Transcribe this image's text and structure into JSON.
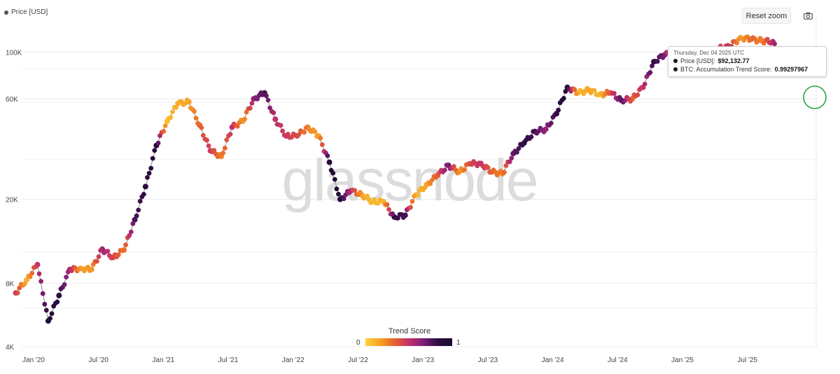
{
  "legend": {
    "label": "Price [USD]"
  },
  "toolbar": {
    "reset_zoom_label": "Reset zoom",
    "camera_icon": "camera-icon"
  },
  "tooltip": {
    "date": "Thursday, Dec 04 2025 UTC",
    "price_label": "Price [USD]: ",
    "price_value": "$92,132.77",
    "score_label": "BTC: Accumulation Trend Score: ",
    "score_value": "0.99297967"
  },
  "watermark": "glassnode",
  "colorbar": {
    "title": "Trend Score",
    "min_label": "0",
    "max_label": "1",
    "colors": [
      "#fcd33a",
      "#f6a328",
      "#e8622c",
      "#c2306a",
      "#7e1e78",
      "#2d0c42",
      "#1a0a2e"
    ]
  },
  "chart_data": {
    "type": "scatter",
    "scale": "log",
    "ylim": [
      4000,
      130000
    ],
    "y_ticks": [
      {
        "value": 4000,
        "label": "4K"
      },
      {
        "value": 8000,
        "label": "8K"
      },
      {
        "value": 20000,
        "label": "20K"
      },
      {
        "value": 60000,
        "label": "60K"
      },
      {
        "value": 100000,
        "label": "100K"
      }
    ],
    "x_ticks": [
      "Jan '20",
      "Jul '20",
      "Jan '21",
      "Jul '21",
      "Jan '22",
      "Jul '22",
      "Jan '23",
      "Jul '23",
      "Jan '24",
      "Jul '24",
      "Jan '25",
      "Jul '25"
    ],
    "x_start": "2020-01",
    "highlight": {
      "date": "2025-12",
      "price": 92132.77,
      "score": 0.99297967
    },
    "series": [
      {
        "values": [
          {
            "x": "2019-12",
            "y": 7200,
            "s": 0.55
          },
          {
            "x": "2020-01",
            "y": 8300,
            "s": 0.15
          },
          {
            "x": "2020-02",
            "y": 9800,
            "s": 0.6
          },
          {
            "x": "2020-03",
            "y": 5300,
            "s": 0.95
          },
          {
            "x": "2020-04",
            "y": 7000,
            "s": 0.9
          },
          {
            "x": "2020-05",
            "y": 9300,
            "s": 0.65
          },
          {
            "x": "2020-06",
            "y": 9400,
            "s": 0.2
          },
          {
            "x": "2020-07",
            "y": 9300,
            "s": 0.25
          },
          {
            "x": "2020-08",
            "y": 11600,
            "s": 0.7
          },
          {
            "x": "2020-09",
            "y": 10600,
            "s": 0.5
          },
          {
            "x": "2020-10",
            "y": 11500,
            "s": 0.35
          },
          {
            "x": "2020-11",
            "y": 16000,
            "s": 0.85
          },
          {
            "x": "2020-12",
            "y": 23000,
            "s": 0.9
          },
          {
            "x": "2021-01",
            "y": 36000,
            "s": 0.95
          },
          {
            "x": "2021-02",
            "y": 47000,
            "s": 0.1
          },
          {
            "x": "2021-03",
            "y": 57000,
            "s": 0.15
          },
          {
            "x": "2021-04",
            "y": 58000,
            "s": 0.2
          },
          {
            "x": "2021-05",
            "y": 45000,
            "s": 0.4
          },
          {
            "x": "2021-06",
            "y": 34000,
            "s": 0.55
          },
          {
            "x": "2021-07",
            "y": 32000,
            "s": 0.3
          },
          {
            "x": "2021-08",
            "y": 44000,
            "s": 0.6
          },
          {
            "x": "2021-09",
            "y": 47000,
            "s": 0.2
          },
          {
            "x": "2021-10",
            "y": 60000,
            "s": 0.7
          },
          {
            "x": "2021-11",
            "y": 64000,
            "s": 0.85
          },
          {
            "x": "2021-12",
            "y": 48000,
            "s": 0.6
          },
          {
            "x": "2022-01",
            "y": 40000,
            "s": 0.55
          },
          {
            "x": "2022-02",
            "y": 40000,
            "s": 0.5
          },
          {
            "x": "2022-03",
            "y": 44000,
            "s": 0.3
          },
          {
            "x": "2022-04",
            "y": 40000,
            "s": 0.2
          },
          {
            "x": "2022-05",
            "y": 30000,
            "s": 0.95
          },
          {
            "x": "2022-06",
            "y": 20000,
            "s": 0.95
          },
          {
            "x": "2022-07",
            "y": 22000,
            "s": 0.6
          },
          {
            "x": "2022-08",
            "y": 21000,
            "s": 0.2
          },
          {
            "x": "2022-09",
            "y": 19500,
            "s": 0.1
          },
          {
            "x": "2022-10",
            "y": 19500,
            "s": 0.15
          },
          {
            "x": "2022-11",
            "y": 16500,
            "s": 0.9
          },
          {
            "x": "2022-12",
            "y": 16800,
            "s": 0.85
          },
          {
            "x": "2023-01",
            "y": 21000,
            "s": 0.1
          },
          {
            "x": "2023-02",
            "y": 23500,
            "s": 0.2
          },
          {
            "x": "2023-03",
            "y": 26000,
            "s": 0.45
          },
          {
            "x": "2023-04",
            "y": 29000,
            "s": 0.8
          },
          {
            "x": "2023-05",
            "y": 27000,
            "s": 0.2
          },
          {
            "x": "2023-06",
            "y": 29500,
            "s": 0.5
          },
          {
            "x": "2023-07",
            "y": 29600,
            "s": 0.6
          },
          {
            "x": "2023-08",
            "y": 27000,
            "s": 0.4
          },
          {
            "x": "2023-09",
            "y": 26500,
            "s": 0.3
          },
          {
            "x": "2023-10",
            "y": 33000,
            "s": 0.8
          },
          {
            "x": "2023-11",
            "y": 37000,
            "s": 0.9
          },
          {
            "x": "2023-12",
            "y": 42000,
            "s": 0.85
          },
          {
            "x": "2024-01",
            "y": 43000,
            "s": 0.7
          },
          {
            "x": "2024-02",
            "y": 51000,
            "s": 0.9
          },
          {
            "x": "2024-03",
            "y": 68000,
            "s": 0.95
          },
          {
            "x": "2024-04",
            "y": 64000,
            "s": 0.1
          },
          {
            "x": "2024-05",
            "y": 66000,
            "s": 0.2
          },
          {
            "x": "2024-06",
            "y": 63000,
            "s": 0.1
          },
          {
            "x": "2024-07",
            "y": 64000,
            "s": 0.5
          },
          {
            "x": "2024-08",
            "y": 59000,
            "s": 0.85
          },
          {
            "x": "2024-09",
            "y": 60000,
            "s": 0.4
          },
          {
            "x": "2024-10",
            "y": 68000,
            "s": 0.6
          },
          {
            "x": "2024-11",
            "y": 90000,
            "s": 0.9
          },
          {
            "x": "2024-12",
            "y": 97000,
            "s": 0.75
          },
          {
            "x": "2025-01",
            "y": 100000,
            "s": 0.15
          },
          {
            "x": "2025-02",
            "y": 90000,
            "s": 0.3
          },
          {
            "x": "2025-03",
            "y": 83000,
            "s": 0.25
          },
          {
            "x": "2025-04",
            "y": 85000,
            "s": 0.2
          },
          {
            "x": "2025-05",
            "y": 104000,
            "s": 0.5
          },
          {
            "x": "2025-06",
            "y": 106000,
            "s": 0.6
          },
          {
            "x": "2025-07",
            "y": 117000,
            "s": 0.2
          },
          {
            "x": "2025-08",
            "y": 115000,
            "s": 0.4
          },
          {
            "x": "2025-09",
            "y": 113000,
            "s": 0.3
          },
          {
            "x": "2025-10",
            "y": 112000,
            "s": 0.65
          },
          {
            "x": "2025-11",
            "y": 90000,
            "s": 0.95
          },
          {
            "x": "2025-12",
            "y": 92132,
            "s": 0.99
          }
        ]
      }
    ]
  }
}
